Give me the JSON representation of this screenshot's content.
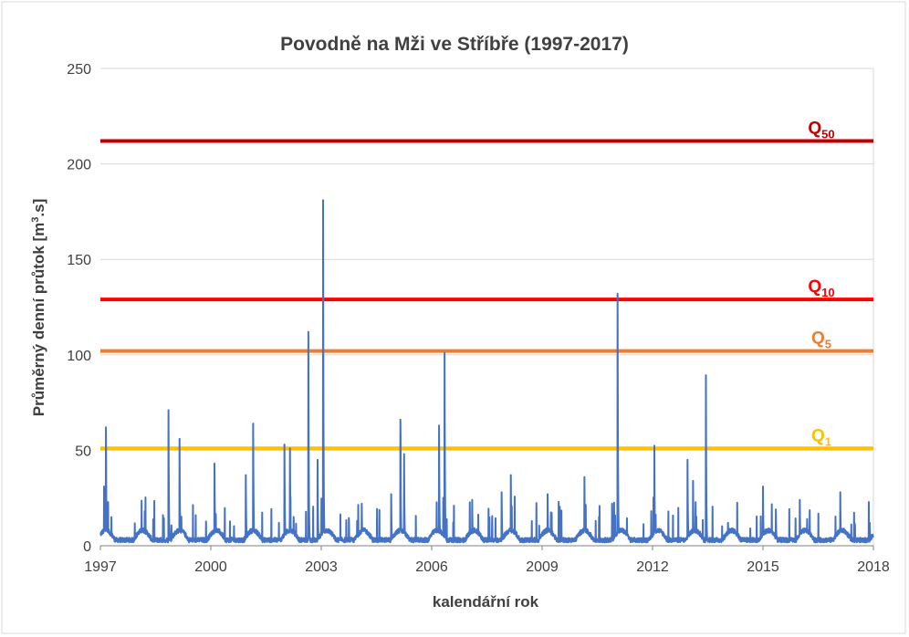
{
  "chart_data": {
    "type": "line",
    "title": "Povodně na Mži ve Stříbře (1997-2017)",
    "xlabel": "kalendářní rok",
    "ylabel_main": "Průměrný denní průtok [m",
    "ylabel_sup": "3",
    "ylabel_end": ".s]",
    "xlim": [
      1997,
      2018
    ],
    "ylim": [
      0,
      250
    ],
    "x_ticks": [
      "1997",
      "2000",
      "2003",
      "2006",
      "2009",
      "2012",
      "2015",
      "2018"
    ],
    "y_ticks": [
      "0",
      "50",
      "100",
      "150",
      "200",
      "250"
    ],
    "grid": true,
    "series": [
      {
        "name": "Průměrný denní průtok",
        "color": "#4472C4",
        "peaks": [
          {
            "x": 1997.15,
            "y": 62
          },
          {
            "x": 1997.1,
            "y": 31
          },
          {
            "x": 1998.85,
            "y": 71
          },
          {
            "x": 1998.7,
            "y": 16
          },
          {
            "x": 1999.15,
            "y": 56
          },
          {
            "x": 2000.1,
            "y": 43
          },
          {
            "x": 2000.95,
            "y": 37
          },
          {
            "x": 2001.15,
            "y": 64
          },
          {
            "x": 2002.0,
            "y": 53
          },
          {
            "x": 2002.15,
            "y": 51
          },
          {
            "x": 2002.65,
            "y": 112
          },
          {
            "x": 2002.9,
            "y": 45
          },
          {
            "x": 2003.05,
            "y": 181
          },
          {
            "x": 2004.1,
            "y": 22
          },
          {
            "x": 2004.9,
            "y": 27
          },
          {
            "x": 2005.15,
            "y": 66
          },
          {
            "x": 2005.25,
            "y": 48
          },
          {
            "x": 2006.2,
            "y": 63
          },
          {
            "x": 2006.35,
            "y": 101
          },
          {
            "x": 2007.1,
            "y": 24
          },
          {
            "x": 2007.9,
            "y": 28
          },
          {
            "x": 2008.15,
            "y": 37
          },
          {
            "x": 2009.15,
            "y": 27
          },
          {
            "x": 2009.45,
            "y": 23
          },
          {
            "x": 2010.15,
            "y": 36
          },
          {
            "x": 2010.9,
            "y": 22
          },
          {
            "x": 2011.05,
            "y": 132
          },
          {
            "x": 2012.05,
            "y": 43
          },
          {
            "x": 2012.95,
            "y": 45
          },
          {
            "x": 2013.1,
            "y": 34
          },
          {
            "x": 2013.45,
            "y": 80
          },
          {
            "x": 2014.05,
            "y": 12
          },
          {
            "x": 2015.0,
            "y": 31
          },
          {
            "x": 2015.35,
            "y": 19
          },
          {
            "x": 2016.0,
            "y": 24
          },
          {
            "x": 2016.2,
            "y": 14
          },
          {
            "x": 2017.1,
            "y": 28
          },
          {
            "x": 2017.9,
            "y": 12
          }
        ]
      }
    ],
    "thresholds": [
      {
        "name": "Q50",
        "base": "Q",
        "sub": "50",
        "value": 212,
        "color": "#C00000"
      },
      {
        "name": "Q10",
        "base": "Q",
        "sub": "10",
        "value": 129,
        "color": "#FF0000"
      },
      {
        "name": "Q5",
        "base": "Q",
        "sub": "5",
        "value": 102,
        "color": "#ED7D31"
      },
      {
        "name": "Q1",
        "base": "Q",
        "sub": "1",
        "value": 51,
        "color": "#FFC000"
      }
    ]
  }
}
